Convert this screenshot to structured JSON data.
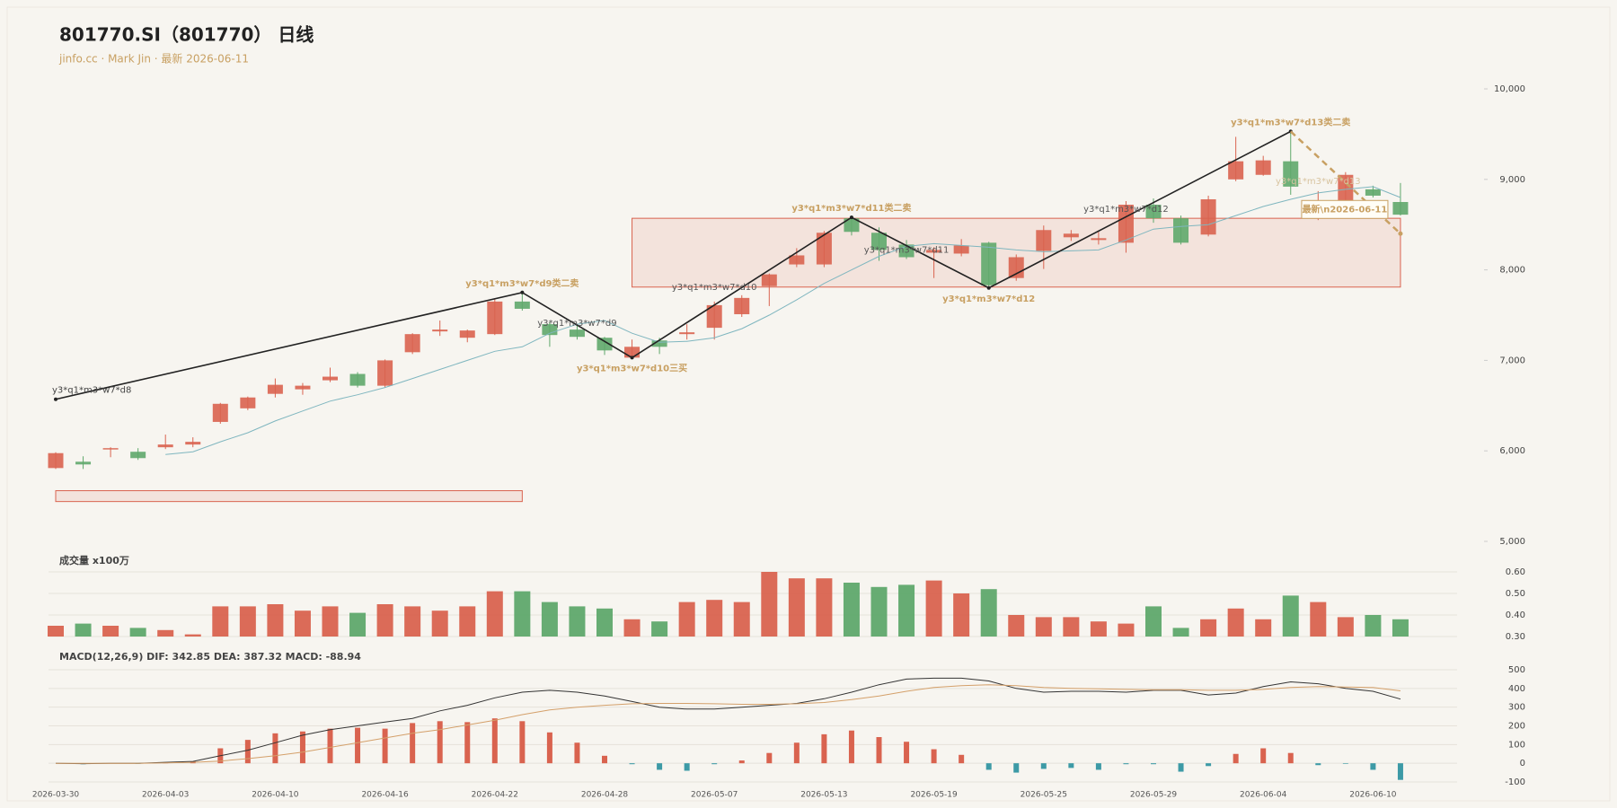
{
  "chart_data": [
    {
      "type": "candlestick",
      "title": "801770.SI（801770） 日线",
      "subtitle": "jinfo.cc · Mark Jin · 最新 2026-06-11",
      "categories": [
        "2026-03-30",
        null,
        null,
        null,
        "2026-04-03",
        null,
        null,
        null,
        "2026-04-10",
        null,
        null,
        null,
        "2026-04-16",
        null,
        null,
        null,
        "2026-04-22",
        null,
        null,
        null,
        "2026-04-28",
        null,
        null,
        null,
        "2026-05-07",
        null,
        null,
        null,
        "2026-05-13",
        null,
        null,
        null,
        "2026-05-19",
        null,
        null,
        null,
        "2026-05-25",
        null,
        null,
        null,
        "2026-05-29",
        null,
        null,
        null,
        "2026-06-04",
        null,
        null,
        null,
        "2026-06-10",
        null
      ],
      "open": [
        5810,
        5880,
        6020,
        5990,
        6040,
        6070,
        6320,
        6470,
        6630,
        6680,
        6780,
        6850,
        6720,
        7090,
        7320,
        7250,
        7290,
        7650,
        7400,
        7340,
        7250,
        7030,
        7220,
        7290,
        7360,
        7510,
        7820,
        8060,
        8060,
        8570,
        8410,
        8280,
        8190,
        8180,
        8300,
        7910,
        8210,
        8360,
        8330,
        8300,
        8720,
        8570,
        8390,
        9000,
        9050,
        9200,
        8580,
        8760,
        8890,
        8750
      ],
      "high": [
        5985,
        5940,
        6040,
        6030,
        6180,
        6150,
        6530,
        6600,
        6800,
        6750,
        6920,
        6870,
        7010,
        7300,
        7440,
        7340,
        7680,
        7770,
        7420,
        7400,
        7260,
        7230,
        7250,
        7400,
        7650,
        7720,
        7960,
        8240,
        8430,
        8600,
        8470,
        8330,
        8250,
        8340,
        8310,
        8170,
        8490,
        8440,
        8420,
        8760,
        8790,
        8600,
        8820,
        9470,
        9260,
        9550,
        8870,
        9080,
        8930,
        8960
      ],
      "low": [
        5800,
        5800,
        5930,
        5900,
        6020,
        6040,
        6300,
        6450,
        6590,
        6620,
        6760,
        6700,
        6700,
        7070,
        7270,
        7200,
        7280,
        7550,
        7150,
        7230,
        7060,
        7020,
        7070,
        7230,
        7230,
        7480,
        7600,
        8030,
        8030,
        8380,
        8100,
        8120,
        7910,
        8150,
        7800,
        7880,
        8010,
        8320,
        8280,
        8190,
        8520,
        8280,
        8370,
        8980,
        9040,
        8830,
        8550,
        8740,
        8800,
        8600
      ],
      "close": [
        5975,
        5850,
        6030,
        5920,
        6070,
        6100,
        6520,
        6590,
        6730,
        6720,
        6820,
        6720,
        7000,
        7290,
        7340,
        7330,
        7650,
        7570,
        7280,
        7260,
        7110,
        7150,
        7150,
        7310,
        7610,
        7690,
        7950,
        8160,
        8410,
        8420,
        8220,
        8140,
        8220,
        8270,
        7830,
        8140,
        8440,
        8400,
        8350,
        8720,
        8570,
        8300,
        8780,
        9200,
        9210,
        8920,
        8600,
        9050,
        8820,
        8610
      ],
      "up_color": "#d9634f",
      "down_color": "#5fa86b",
      "ma": {
        "color": "#7fb6bf",
        "values": [
          null,
          null,
          null,
          null,
          5960,
          5990,
          6100,
          6200,
          6330,
          6440,
          6550,
          6620,
          6700,
          6800,
          6900,
          7000,
          7100,
          7150,
          7300,
          7400,
          7440,
          7300,
          7200,
          7210,
          7250,
          7350,
          7500,
          7670,
          7850,
          8000,
          8150,
          8260,
          8290,
          8270,
          8250,
          8220,
          8200,
          8210,
          8220,
          8330,
          8450,
          8480,
          8500,
          8600,
          8700,
          8780,
          8850,
          8890,
          8920,
          8800
        ]
      },
      "ylim": [
        5000,
        10000
      ],
      "yticks": [
        {
          "value": 5000,
          "label": "5,000"
        },
        {
          "value": 6000,
          "label": "6,000"
        },
        {
          "value": 7000,
          "label": "7,000"
        },
        {
          "value": 8000,
          "label": "8,000"
        },
        {
          "value": 9000,
          "label": "9,000"
        },
        {
          "value": 10000,
          "label": "10,000"
        }
      ],
      "zones": [
        {
          "start": 21,
          "end": 49,
          "low": 7810,
          "high": 8570,
          "color": "#d9634f"
        },
        {
          "start": 0,
          "end": 17,
          "low": 5440,
          "high": 5560,
          "color": "#d9634f"
        }
      ],
      "zigzag": {
        "color": "#222222",
        "points": [
          {
            "index": 0,
            "value": 6570,
            "label": "y3*q1*m3*w7*d8",
            "color": "#444444",
            "position": "above"
          },
          {
            "index": 17,
            "value": 7750,
            "label": "y3*q1*m3*w7*d9类二卖",
            "color": "#c8a062",
            "position": "above"
          },
          {
            "index": 21,
            "value": 7030,
            "label": "y3*q1*m3*w7*d10三买",
            "color": "#c8a062",
            "position": "below"
          },
          {
            "index": 29,
            "value": 8580,
            "label": "y3*q1*m3*w7*d11类二卖",
            "color": "#c8a062",
            "position": "above"
          },
          {
            "index": 34,
            "value": 7800,
            "label": "y3*q1*m3*w7*d12",
            "color": "#c8a062",
            "position": "below"
          },
          {
            "index": 45,
            "value": 9530,
            "label": "y3*q1*m3*w7*d13类二卖",
            "color": "#c8a062",
            "position": "above"
          }
        ]
      },
      "pending": {
        "index": 49,
        "value": 8400,
        "color": "#c8a062",
        "label": "最新\\n2026-06-11"
      },
      "sub_labels": [
        {
          "index": 19,
          "value": 7410,
          "label": "y3*q1*m3*w7*d9",
          "color": "#555555"
        },
        {
          "index": 24,
          "value": 7810,
          "label": "y3*q1*m3*w7*d10",
          "color": "#555555"
        },
        {
          "index": 31,
          "value": 8220,
          "label": "y3*q1*m3*w7*d11",
          "color": "#555555"
        },
        {
          "index": 39,
          "value": 8670,
          "label": "y3*q1*m3*w7*d12",
          "color": "#555555"
        },
        {
          "index": 46,
          "value": 8980,
          "label": "y3*q1*m3*w7*d13",
          "color": "#d8c4a0"
        }
      ]
    },
    {
      "type": "bar",
      "title": "成交量 x100万",
      "values": [
        0.35,
        0.36,
        0.35,
        0.34,
        0.33,
        0.31,
        0.44,
        0.44,
        0.45,
        0.42,
        0.44,
        0.41,
        0.45,
        0.44,
        0.42,
        0.44,
        0.51,
        0.51,
        0.46,
        0.44,
        0.43,
        0.38,
        0.37,
        0.46,
        0.47,
        0.46,
        0.6,
        0.57,
        0.57,
        0.55,
        0.53,
        0.54,
        0.56,
        0.5,
        0.52,
        0.4,
        0.39,
        0.39,
        0.37,
        0.36,
        0.44,
        0.34,
        0.38,
        0.43,
        0.38,
        0.49,
        0.46,
        0.39,
        0.4,
        0.38
      ],
      "ylim": [
        0.3,
        0.6
      ],
      "yticks": [
        {
          "value": 0.3,
          "label": "0.30"
        },
        {
          "value": 0.4,
          "label": "0.40"
        },
        {
          "value": 0.5,
          "label": "0.50"
        },
        {
          "value": 0.6,
          "label": "0.60"
        }
      ],
      "grid": true
    },
    {
      "type": "macd",
      "title": "MACD(12,26,9) DIF: 342.85 DEA: 387.32 MACD: -88.94",
      "dif": {
        "color": "#333333",
        "values": [
          0,
          -2,
          0,
          0,
          5,
          10,
          40,
          70,
          110,
          150,
          180,
          200,
          220,
          240,
          280,
          310,
          350,
          380,
          390,
          380,
          360,
          330,
          300,
          290,
          290,
          300,
          310,
          320,
          345,
          380,
          420,
          450,
          455,
          455,
          440,
          400,
          380,
          385,
          385,
          380,
          390,
          390,
          365,
          375,
          410,
          435,
          425,
          400,
          385,
          342.85
        ]
      },
      "dea": {
        "color": "#d4a06a",
        "values": [
          0,
          0,
          0,
          0,
          2,
          5,
          12,
          25,
          40,
          60,
          85,
          110,
          135,
          160,
          180,
          205,
          230,
          260,
          285,
          300,
          310,
          318,
          320,
          320,
          318,
          315,
          315,
          318,
          325,
          340,
          360,
          385,
          405,
          415,
          420,
          415,
          405,
          400,
          398,
          395,
          393,
          393,
          390,
          390,
          395,
          405,
          410,
          408,
          405,
          387.32
        ]
      },
      "hist": {
        "up_color": "#d9634f",
        "down_color": "#3d9aa6",
        "values": [
          0,
          -5,
          0,
          -3,
          3,
          10,
          80,
          125,
          160,
          170,
          185,
          190,
          185,
          215,
          225,
          220,
          240,
          225,
          165,
          110,
          40,
          -5,
          -35,
          -40,
          -5,
          15,
          55,
          110,
          155,
          175,
          140,
          115,
          75,
          45,
          -35,
          -50,
          -30,
          -25,
          -35,
          -5,
          -5,
          -45,
          -15,
          50,
          80,
          55,
          -10,
          -3,
          -35,
          -88.94
        ]
      },
      "ylim": [
        -100,
        500
      ],
      "yticks": [
        -100,
        0,
        100,
        200,
        300,
        400,
        500
      ],
      "grid": true
    }
  ]
}
